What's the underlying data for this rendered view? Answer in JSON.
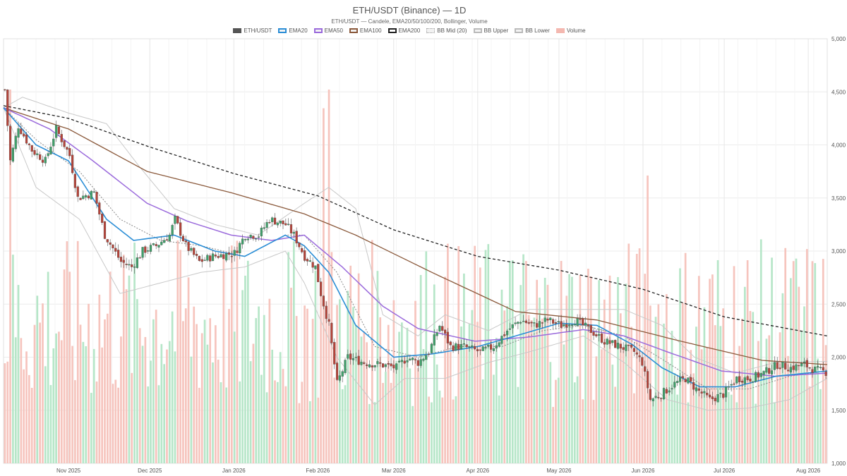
{
  "chart_data": {
    "type": "candlestick",
    "title": "ETH/USDT (Binance) — 1D",
    "subtitle": "ETH/USDT — Candele, EMA20/50/100/200, Bollinger, Volume",
    "x_range": [
      "2025-10-08",
      "2026-08-08"
    ],
    "y_range": [
      1000,
      5000
    ],
    "y_ticks": [
      "1,000",
      "1,500",
      "2,000",
      "2,500",
      "3,000",
      "3,500",
      "4,000",
      "4,500",
      "5,000"
    ],
    "x_ticks": [
      "Nov 2025",
      "Dec 2025",
      "Jan 2026",
      "Feb 2026",
      "Mar 2026",
      "Apr 2026",
      "May 2026",
      "Jun 2026",
      "Jul 2026",
      "Aug 2026"
    ],
    "legend": [
      {
        "label": "ETH/USDT",
        "color": "#555555",
        "style": "solid"
      },
      {
        "label": "EMA20",
        "color": "#2b8ed6",
        "style": "line"
      },
      {
        "label": "EMA50",
        "color": "#9b6bdc",
        "style": "line"
      },
      {
        "label": "EMA100",
        "color": "#8b5a3c",
        "style": "line"
      },
      {
        "label": "EMA200",
        "color": "#222222",
        "style": "dashed"
      },
      {
        "label": "BB Mid (20)",
        "color": "#999999",
        "style": "dotted"
      },
      {
        "label": "BB Upper",
        "color": "#bbbbbb",
        "style": "line"
      },
      {
        "label": "BB Lower",
        "color": "#bbbbbb",
        "style": "line"
      },
      {
        "label": "Volume",
        "color": "#f4b8b0",
        "style": "fill"
      }
    ],
    "colors": {
      "up": "#3fa06a",
      "down": "#b5443a",
      "vol_up": "#b6e6c8",
      "vol_down": "#f6c4bd"
    },
    "price_keypoints": [
      [
        "2025-10-08",
        4520
      ],
      [
        "2025-10-10",
        3850
      ],
      [
        "2025-10-13",
        4180
      ],
      [
        "2025-10-18",
        3950
      ],
      [
        "2025-10-23",
        3850
      ],
      [
        "2025-10-27",
        4150
      ],
      [
        "2025-11-01",
        3900
      ],
      [
        "2025-11-04",
        3500
      ],
      [
        "2025-11-10",
        3550
      ],
      [
        "2025-11-14",
        3150
      ],
      [
        "2025-11-20",
        2900
      ],
      [
        "2025-11-24",
        2850
      ],
      [
        "2025-11-28",
        3000
      ],
      [
        "2025-12-03",
        3050
      ],
      [
        "2025-12-08",
        3150
      ],
      [
        "2025-12-10",
        3300
      ],
      [
        "2025-12-14",
        3050
      ],
      [
        "2025-12-19",
        2900
      ],
      [
        "2025-12-24",
        2950
      ],
      [
        "2026-01-01",
        2980
      ],
      [
        "2026-01-05",
        3150
      ],
      [
        "2026-01-10",
        3150
      ],
      [
        "2026-01-14",
        3300
      ],
      [
        "2026-01-20",
        3250
      ],
      [
        "2026-01-23",
        3150
      ],
      [
        "2026-01-27",
        2950
      ],
      [
        "2026-01-31",
        2850
      ],
      [
        "2026-02-02",
        2600
      ],
      [
        "2026-02-05",
        2300
      ],
      [
        "2026-02-08",
        1750
      ],
      [
        "2026-02-12",
        2000
      ],
      [
        "2026-02-18",
        1950
      ],
      [
        "2026-02-24",
        1930
      ],
      [
        "2026-03-02",
        1900
      ],
      [
        "2026-03-06",
        2000
      ],
      [
        "2026-03-10",
        1950
      ],
      [
        "2026-03-14",
        2050
      ],
      [
        "2026-03-18",
        2300
      ],
      [
        "2026-03-22",
        2100
      ],
      [
        "2026-03-27",
        2100
      ],
      [
        "2026-04-02",
        2050
      ],
      [
        "2026-04-07",
        2100
      ],
      [
        "2026-04-12",
        2250
      ],
      [
        "2026-04-17",
        2350
      ],
      [
        "2026-04-22",
        2300
      ],
      [
        "2026-04-27",
        2350
      ],
      [
        "2026-05-02",
        2300
      ],
      [
        "2026-05-07",
        2350
      ],
      [
        "2026-05-13",
        2250
      ],
      [
        "2026-05-18",
        2150
      ],
      [
        "2026-05-24",
        2100
      ],
      [
        "2026-05-29",
        2050
      ],
      [
        "2026-06-01",
        1950
      ],
      [
        "2026-06-04",
        1600
      ],
      [
        "2026-06-08",
        1650
      ],
      [
        "2026-06-13",
        1750
      ],
      [
        "2026-06-17",
        1800
      ],
      [
        "2026-06-21",
        1700
      ],
      [
        "2026-06-26",
        1600
      ],
      [
        "2026-07-01",
        1650
      ],
      [
        "2026-07-06",
        1800
      ],
      [
        "2026-07-11",
        1800
      ],
      [
        "2026-07-16",
        1850
      ],
      [
        "2026-07-21",
        1930
      ],
      [
        "2026-07-26",
        1900
      ],
      [
        "2026-07-31",
        1930
      ],
      [
        "2026-08-04",
        1880
      ],
      [
        "2026-08-08",
        1860
      ]
    ],
    "ema20": [
      [
        "2025-10-08",
        4350
      ],
      [
        "2025-10-20",
        4000
      ],
      [
        "2025-11-01",
        3850
      ],
      [
        "2025-11-15",
        3300
      ],
      [
        "2025-11-25",
        3100
      ],
      [
        "2025-12-10",
        3150
      ],
      [
        "2025-12-25",
        3000
      ],
      [
        "2026-01-05",
        2950
      ],
      [
        "2026-01-20",
        3150
      ],
      [
        "2026-01-27",
        3050
      ],
      [
        "2026-02-05",
        2800
      ],
      [
        "2026-02-15",
        2300
      ],
      [
        "2026-03-01",
        2000
      ],
      [
        "2026-03-15",
        2030
      ],
      [
        "2026-04-01",
        2100
      ],
      [
        "2026-04-15",
        2200
      ],
      [
        "2026-05-01",
        2320
      ],
      [
        "2026-05-15",
        2300
      ],
      [
        "2026-05-28",
        2120
      ],
      [
        "2026-06-08",
        1900
      ],
      [
        "2026-06-22",
        1720
      ],
      [
        "2026-07-05",
        1720
      ],
      [
        "2026-07-20",
        1820
      ],
      [
        "2026-08-08",
        1870
      ]
    ],
    "ema50": [
      [
        "2025-10-08",
        4350
      ],
      [
        "2025-10-25",
        4150
      ],
      [
        "2025-11-10",
        3850
      ],
      [
        "2025-11-30",
        3450
      ],
      [
        "2025-12-15",
        3280
      ],
      [
        "2025-12-31",
        3150
      ],
      [
        "2026-01-15",
        3100
      ],
      [
        "2026-01-27",
        3150
      ],
      [
        "2026-02-10",
        2850
      ],
      [
        "2026-02-25",
        2480
      ],
      [
        "2026-03-10",
        2270
      ],
      [
        "2026-03-31",
        2150
      ],
      [
        "2026-04-20",
        2190
      ],
      [
        "2026-05-10",
        2260
      ],
      [
        "2026-05-25",
        2200
      ],
      [
        "2026-06-10",
        2050
      ],
      [
        "2026-06-30",
        1870
      ],
      [
        "2026-07-20",
        1820
      ],
      [
        "2026-08-08",
        1850
      ]
    ],
    "ema100": [
      [
        "2025-10-08",
        4350
      ],
      [
        "2025-11-01",
        4150
      ],
      [
        "2025-11-30",
        3750
      ],
      [
        "2025-12-31",
        3550
      ],
      [
        "2026-01-27",
        3350
      ],
      [
        "2026-02-15",
        3150
      ],
      [
        "2026-03-15",
        2800
      ],
      [
        "2026-04-15",
        2430
      ],
      [
        "2026-05-15",
        2350
      ],
      [
        "2026-06-15",
        2150
      ],
      [
        "2026-07-15",
        1970
      ],
      [
        "2026-08-08",
        1930
      ]
    ],
    "ema200": [
      [
        "2025-10-08",
        4370
      ],
      [
        "2025-11-01",
        4250
      ],
      [
        "2025-12-01",
        3980
      ],
      [
        "2026-01-01",
        3730
      ],
      [
        "2026-02-01",
        3520
      ],
      [
        "2026-03-01",
        3200
      ],
      [
        "2026-04-01",
        2950
      ],
      [
        "2026-05-01",
        2820
      ],
      [
        "2026-06-01",
        2640
      ],
      [
        "2026-07-01",
        2380
      ],
      [
        "2026-08-08",
        2200
      ]
    ],
    "bb_upper": [
      [
        "2025-10-08",
        4350
      ],
      [
        "2025-10-15",
        4450
      ],
      [
        "2025-11-01",
        4300
      ],
      [
        "2025-11-15",
        4200
      ],
      [
        "2025-11-27",
        3800
      ],
      [
        "2025-12-10",
        3400
      ],
      [
        "2025-12-25",
        3250
      ],
      [
        "2026-01-10",
        3150
      ],
      [
        "2026-01-27",
        3450
      ],
      [
        "2026-02-05",
        3600
      ],
      [
        "2026-02-15",
        3400
      ],
      [
        "2026-02-25",
        2400
      ],
      [
        "2026-03-10",
        2200
      ],
      [
        "2026-03-20",
        2400
      ],
      [
        "2026-04-05",
        2250
      ],
      [
        "2026-04-20",
        2450
      ],
      [
        "2026-05-10",
        2450
      ],
      [
        "2026-05-25",
        2450
      ],
      [
        "2026-06-08",
        2300
      ],
      [
        "2026-06-20",
        2000
      ],
      [
        "2026-07-05",
        1850
      ],
      [
        "2026-07-20",
        1950
      ],
      [
        "2026-08-08",
        1960
      ]
    ],
    "bb_lower": [
      [
        "2025-10-08",
        4350
      ],
      [
        "2025-10-20",
        3600
      ],
      [
        "2025-11-05",
        3300
      ],
      [
        "2025-11-20",
        2600
      ],
      [
        "2025-12-05",
        2700
      ],
      [
        "2025-12-20",
        2800
      ],
      [
        "2026-01-05",
        2850
      ],
      [
        "2026-01-20",
        3000
      ],
      [
        "2026-01-27",
        2700
      ],
      [
        "2026-02-08",
        2000
      ],
      [
        "2026-02-22",
        1550
      ],
      [
        "2026-03-05",
        1800
      ],
      [
        "2026-03-20",
        1800
      ],
      [
        "2026-04-05",
        1950
      ],
      [
        "2026-04-20",
        2050
      ],
      [
        "2026-05-10",
        2200
      ],
      [
        "2026-05-25",
        1950
      ],
      [
        "2026-06-10",
        1600
      ],
      [
        "2026-06-25",
        1500
      ],
      [
        "2026-07-10",
        1520
      ],
      [
        "2026-07-25",
        1600
      ],
      [
        "2026-08-08",
        1800
      ]
    ],
    "bb_mid": [
      [
        "2025-10-08",
        4350
      ],
      [
        "2025-10-20",
        4050
      ],
      [
        "2025-11-05",
        3750
      ],
      [
        "2025-11-20",
        3300
      ],
      [
        "2025-12-05",
        3100
      ],
      [
        "2025-12-20",
        3050
      ],
      [
        "2026-01-05",
        2950
      ],
      [
        "2026-01-20",
        3150
      ],
      [
        "2026-01-27",
        3150
      ],
      [
        "2026-02-08",
        2800
      ],
      [
        "2026-02-22",
        2100
      ],
      [
        "2026-03-10",
        2000
      ],
      [
        "2026-03-25",
        2100
      ],
      [
        "2026-04-10",
        2100
      ],
      [
        "2026-04-25",
        2250
      ],
      [
        "2026-05-10",
        2300
      ],
      [
        "2026-05-25",
        2200
      ],
      [
        "2026-06-10",
        1950
      ],
      [
        "2026-06-25",
        1700
      ],
      [
        "2026-07-10",
        1700
      ],
      [
        "2026-07-25",
        1820
      ],
      [
        "2026-08-08",
        1870
      ]
    ],
    "volume_spikes": [
      [
        "2025-10-10",
        1.0
      ],
      [
        "2026-02-05",
        1.0
      ],
      [
        "2026-02-03",
        0.95
      ],
      [
        "2026-06-03",
        0.77
      ]
    ]
  }
}
